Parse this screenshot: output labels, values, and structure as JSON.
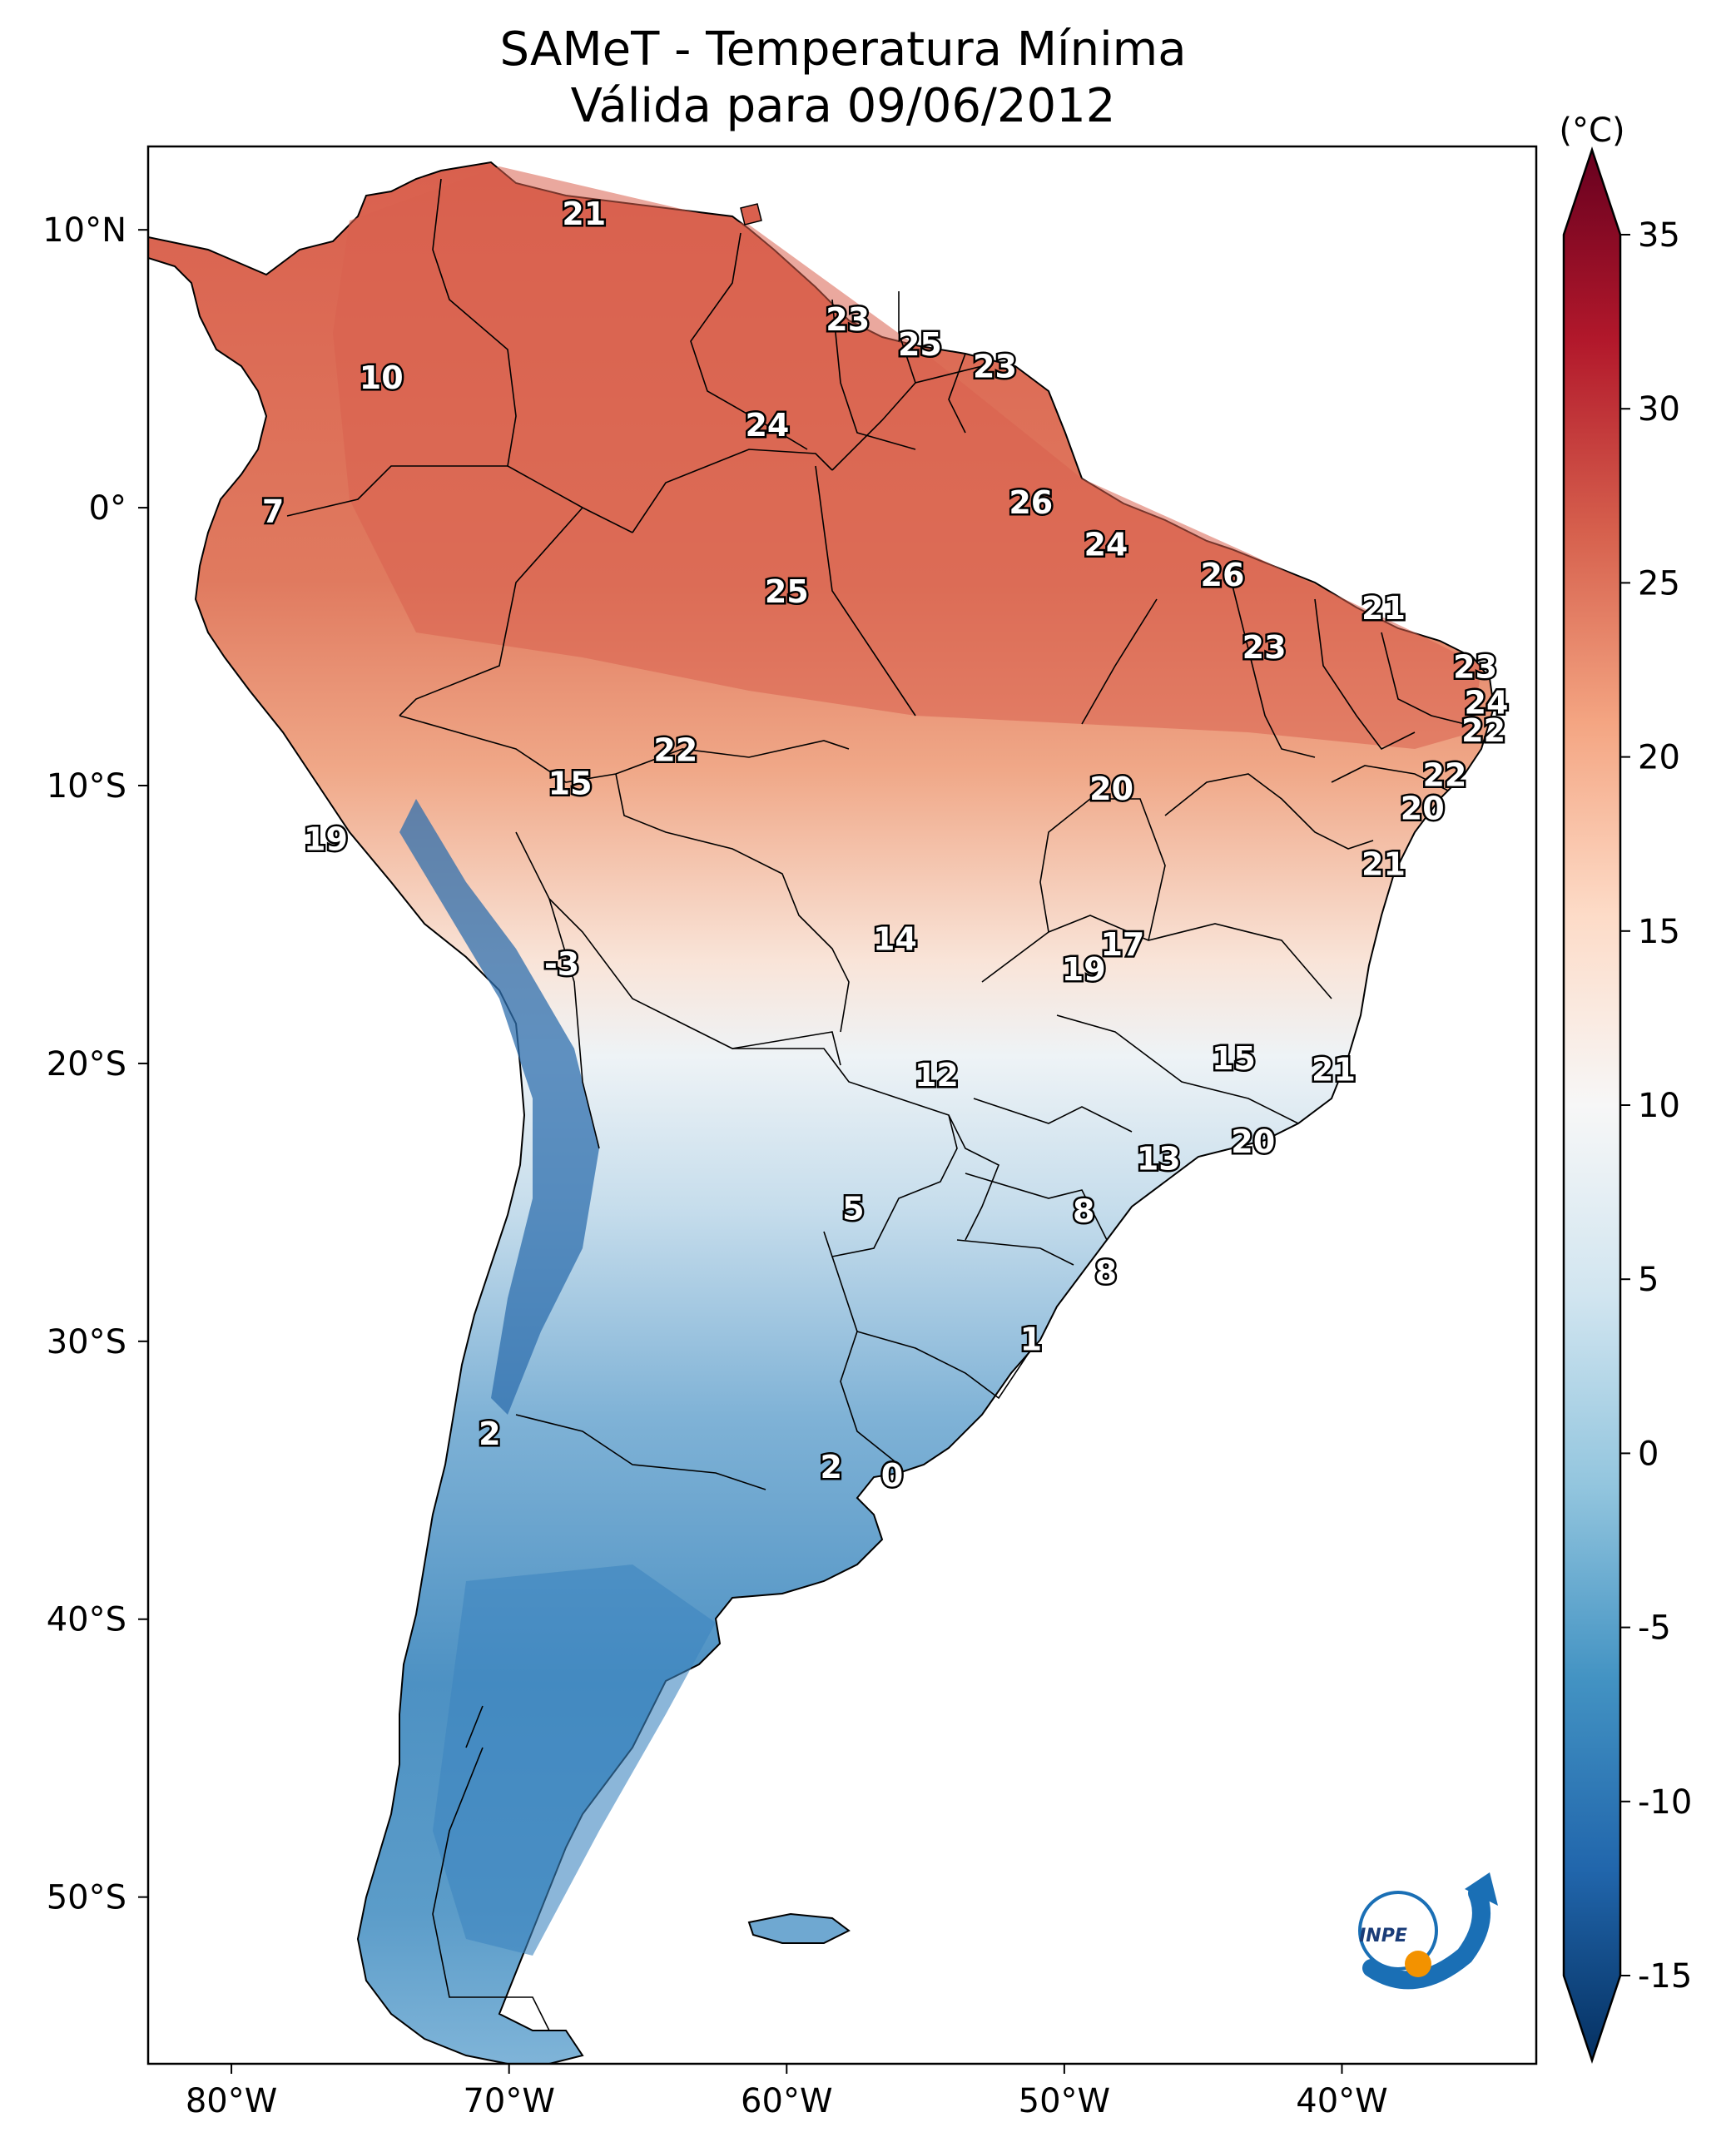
{
  "title_line1": "SAMeT - Temperatura Mínima",
  "title_line2": "Válida para 09/06/2012",
  "colorbar": {
    "unit": "(°C)",
    "min": -15,
    "max": 35,
    "ticks": [
      "35",
      "30",
      "25",
      "20",
      "15",
      "10",
      "5",
      "0",
      "-5",
      "-10",
      "-15"
    ],
    "colors": {
      "dark_red": "#67001f",
      "red": "#b2182b",
      "salmon": "#d6604d",
      "light_salmon": "#f4a582",
      "peach": "#fddbc7",
      "white": "#f7f7f7",
      "light_blue": "#d1e5f0",
      "sky": "#92c5de",
      "blue": "#4393c3",
      "mid_blue": "#2166ac",
      "navy": "#053061"
    }
  },
  "axes": {
    "lon_labels": [
      "80°W",
      "70°W",
      "60°W",
      "50°W",
      "40°W"
    ],
    "lat_labels": [
      "10°N",
      "0°",
      "10°S",
      "20°S",
      "30°S",
      "40°S",
      "50°S"
    ]
  },
  "logo_text": "INPE",
  "station_values": [
    {
      "id": "v1",
      "text": "21",
      "lon": -67.3,
      "lat": 10.5
    },
    {
      "id": "v2",
      "text": "10",
      "lon": -74.6,
      "lat": 4.6
    },
    {
      "id": "v3",
      "text": "7",
      "lon": -78.5,
      "lat": -0.2
    },
    {
      "id": "v4",
      "text": "23",
      "lon": -57.8,
      "lat": 6.7
    },
    {
      "id": "v5",
      "text": "25",
      "lon": -55.2,
      "lat": 5.8
    },
    {
      "id": "v6",
      "text": "23",
      "lon": -52.5,
      "lat": 5.0
    },
    {
      "id": "v7",
      "text": "24",
      "lon": -60.7,
      "lat": 2.9
    },
    {
      "id": "v8",
      "text": "26",
      "lon": -51.2,
      "lat": 0.1
    },
    {
      "id": "v9",
      "text": "24",
      "lon": -48.5,
      "lat": -1.4
    },
    {
      "id": "v10",
      "text": "26",
      "lon": -44.3,
      "lat": -2.5
    },
    {
      "id": "v11",
      "text": "25",
      "lon": -60.0,
      "lat": -3.1
    },
    {
      "id": "v12",
      "text": "21",
      "lon": -38.5,
      "lat": -3.7
    },
    {
      "id": "v13",
      "text": "23",
      "lon": -42.8,
      "lat": -5.1
    },
    {
      "id": "v14",
      "text": "23",
      "lon": -35.2,
      "lat": -5.8
    },
    {
      "id": "v15",
      "text": "24",
      "lon": -34.8,
      "lat": -7.1
    },
    {
      "id": "v16",
      "text": "22",
      "lon": -34.9,
      "lat": -8.1
    },
    {
      "id": "v17",
      "text": "22",
      "lon": -64.0,
      "lat": -8.8
    },
    {
      "id": "v18",
      "text": "22",
      "lon": -36.3,
      "lat": -9.7
    },
    {
      "id": "v19",
      "text": "15",
      "lon": -67.8,
      "lat": -10.0
    },
    {
      "id": "v20",
      "text": "20",
      "lon": -48.3,
      "lat": -10.2
    },
    {
      "id": "v21",
      "text": "20",
      "lon": -37.1,
      "lat": -10.9
    },
    {
      "id": "v22",
      "text": "19",
      "lon": -76.6,
      "lat": -12.0
    },
    {
      "id": "v23",
      "text": "21",
      "lon": -38.5,
      "lat": -12.9
    },
    {
      "id": "v24",
      "text": "14",
      "lon": -56.1,
      "lat": -15.6
    },
    {
      "id": "v25",
      "text": "17",
      "lon": -47.9,
      "lat": -15.8
    },
    {
      "id": "v26",
      "text": "19",
      "lon": -49.3,
      "lat": -16.7
    },
    {
      "id": "v27",
      "text": "-3",
      "lon": -68.1,
      "lat": -16.5
    },
    {
      "id": "v28",
      "text": "15",
      "lon": -43.9,
      "lat": -19.9
    },
    {
      "id": "v29",
      "text": "12",
      "lon": -54.6,
      "lat": -20.5
    },
    {
      "id": "v30",
      "text": "21",
      "lon": -40.3,
      "lat": -20.3
    },
    {
      "id": "v31",
      "text": "20",
      "lon": -43.2,
      "lat": -22.9
    },
    {
      "id": "v32",
      "text": "13",
      "lon": -46.6,
      "lat": -23.5
    },
    {
      "id": "v33",
      "text": "5",
      "lon": -57.6,
      "lat": -25.3
    },
    {
      "id": "v34",
      "text": "8",
      "lon": -49.3,
      "lat": -25.4
    },
    {
      "id": "v35",
      "text": "8",
      "lon": -48.5,
      "lat": -27.6
    },
    {
      "id": "v36",
      "text": "1",
      "lon": -51.2,
      "lat": -30.0
    },
    {
      "id": "v37",
      "text": "2",
      "lon": -70.7,
      "lat": -33.4
    },
    {
      "id": "v38",
      "text": "2",
      "lon": -58.4,
      "lat": -34.6
    },
    {
      "id": "v39",
      "text": "0",
      "lon": -56.2,
      "lat": -34.9
    }
  ]
}
